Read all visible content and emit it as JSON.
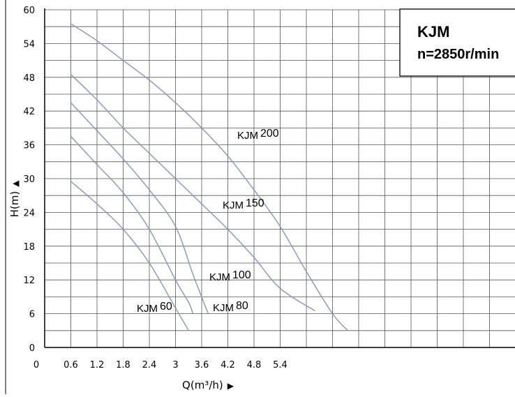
{
  "chart_data": {
    "type": "line",
    "title": "KJM",
    "subtitle": "n=2850r/min",
    "xlabel": "Q(m³/h)",
    "ylabel": "H(m)",
    "x_ticks": [
      "0",
      "0.6",
      "1.2",
      "1.8",
      "2.4",
      "3",
      "3.6",
      "4.2",
      "4.8",
      "5.4"
    ],
    "y_ticks": [
      "0",
      "6",
      "12",
      "18",
      "24",
      "30",
      "36",
      "42",
      "48",
      "54",
      "60"
    ],
    "xlim": [
      0,
      8.4
    ],
    "ylim": [
      0,
      60
    ],
    "grid": true,
    "series": [
      {
        "name": "KJM 60",
        "label_prefix": "KJM",
        "label_number": "60",
        "color": "#8b93b8",
        "points": [
          [
            0.6,
            29.5
          ],
          [
            1.2,
            25.5
          ],
          [
            1.8,
            21
          ],
          [
            2.4,
            15
          ],
          [
            3.0,
            7
          ],
          [
            3.3,
            3
          ]
        ]
      },
      {
        "name": "KJM 80",
        "label_prefix": "KJM",
        "label_number": "80",
        "color": "#8b93b8",
        "points": [
          [
            0.6,
            37.5
          ],
          [
            1.2,
            32.5
          ],
          [
            1.8,
            27.5
          ],
          [
            2.4,
            21
          ],
          [
            3.0,
            12
          ],
          [
            3.3,
            8
          ],
          [
            3.4,
            6
          ]
        ]
      },
      {
        "name": "KJM 100",
        "label_prefix": "KJM",
        "label_number": "100",
        "color": "#8b93b8",
        "points": [
          [
            0.6,
            43.5
          ],
          [
            1.2,
            38.5
          ],
          [
            1.8,
            33.5
          ],
          [
            2.4,
            28
          ],
          [
            3.0,
            21.5
          ],
          [
            3.4,
            13
          ],
          [
            3.75,
            6
          ]
        ]
      },
      {
        "name": "KJM 150",
        "label_prefix": "KJM",
        "label_number": "150",
        "color": "#8b93b8",
        "points": [
          [
            0.6,
            48.5
          ],
          [
            1.2,
            44
          ],
          [
            1.8,
            39
          ],
          [
            2.4,
            34.5
          ],
          [
            3.0,
            30
          ],
          [
            3.6,
            25.5
          ],
          [
            4.2,
            21
          ],
          [
            4.8,
            16
          ],
          [
            5.4,
            10.5
          ],
          [
            6.2,
            6.5
          ]
        ]
      },
      {
        "name": "KJM 200",
        "label_prefix": "KJM",
        "label_number": "200",
        "color": "#8b93b8",
        "points": [
          [
            0.6,
            57.5
          ],
          [
            1.2,
            54.5
          ],
          [
            1.8,
            51
          ],
          [
            2.4,
            47.5
          ],
          [
            3.0,
            43.5
          ],
          [
            3.6,
            39
          ],
          [
            4.2,
            34
          ],
          [
            4.8,
            28
          ],
          [
            5.4,
            21.5
          ],
          [
            6.0,
            13.5
          ],
          [
            6.6,
            6
          ],
          [
            6.95,
            3
          ]
        ]
      }
    ]
  }
}
